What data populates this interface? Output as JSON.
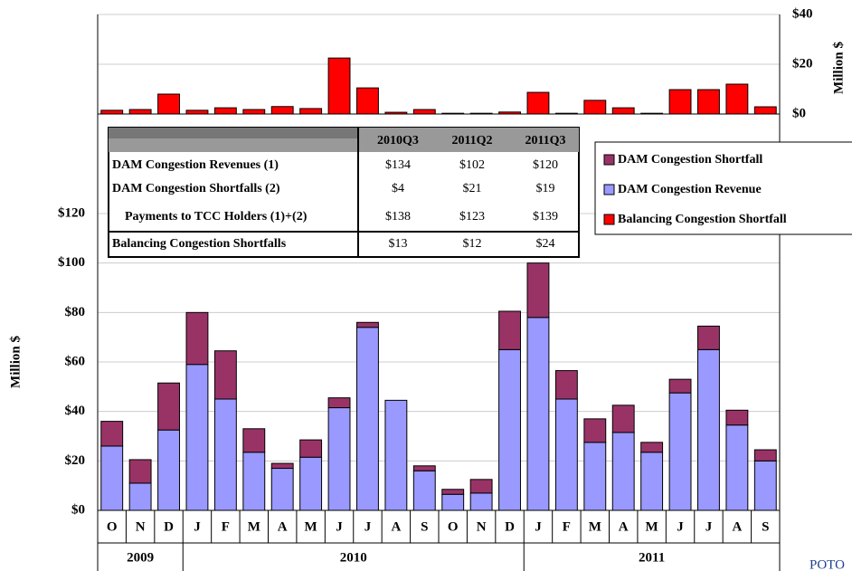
{
  "chart_data": [
    {
      "type": "bar",
      "stacked": true,
      "ylabel": "Million $",
      "categories": [
        "O",
        "N",
        "D",
        "J",
        "F",
        "M",
        "A",
        "M",
        "J",
        "J",
        "A",
        "S",
        "O",
        "N",
        "D",
        "J",
        "F",
        "M",
        "A",
        "M",
        "J",
        "J",
        "A",
        "S"
      ],
      "groups": [
        "2009",
        "2010",
        "2011"
      ],
      "series": [
        {
          "name": "DAM Congestion Revenue",
          "color": "#9999ff",
          "values": [
            26,
            11,
            32.5,
            59,
            45,
            23.5,
            17,
            21.5,
            41.5,
            74,
            44.5,
            16,
            6.5,
            7,
            65,
            78,
            45,
            27.5,
            31.5,
            23.5,
            47.5,
            65,
            34.5,
            20
          ]
        },
        {
          "name": "DAM Congestion Shortfall",
          "color": "#993366",
          "values": [
            10,
            9.5,
            19,
            21,
            19.5,
            9.5,
            2,
            7,
            4,
            2,
            0,
            2,
            2,
            5.5,
            15.5,
            22,
            11.5,
            9.5,
            11,
            4,
            5.5,
            9.5,
            6,
            4.5
          ]
        }
      ],
      "ylim": [
        0,
        120
      ],
      "yticks": [
        {
          "value": 0,
          "label": "$0"
        },
        {
          "value": 20,
          "label": "$20"
        },
        {
          "value": 40,
          "label": "$40"
        },
        {
          "value": 60,
          "label": "$60"
        },
        {
          "value": 80,
          "label": "$80"
        },
        {
          "value": 100,
          "label": "$100"
        },
        {
          "value": 120,
          "label": "$120"
        }
      ],
      "grid": true
    },
    {
      "type": "bar",
      "ylabel": "Million $",
      "series": [
        {
          "name": "Balancing Congestion Shortfall",
          "color": "#ff0000",
          "values": [
            1.5,
            1.8,
            8,
            1.5,
            2.5,
            1.8,
            3,
            2.2,
            22.5,
            10.5,
            0.7,
            1.8,
            0.3,
            0.3,
            0.8,
            8.7,
            0.3,
            5.5,
            2.5,
            0.3,
            9.8,
            9.8,
            12,
            2.9
          ]
        }
      ],
      "ylim": [
        0,
        40
      ],
      "yticks": [
        {
          "value": 0,
          "label": "$0"
        },
        {
          "value": 20,
          "label": "$20"
        },
        {
          "value": 40,
          "label": "$40"
        }
      ],
      "grid": true
    }
  ],
  "table": {
    "columns": [
      "2010Q3",
      "2011Q2",
      "2011Q3"
    ],
    "rows": [
      [
        "DAM Congestion Revenues (1)",
        "$134",
        "$102",
        "$120"
      ],
      [
        "DAM Congestion Shortfalls (2)",
        "$4",
        "$21",
        "$19"
      ],
      [
        "Payments to TCC Holders (1)+(2)",
        "$138",
        "$123",
        "$139"
      ],
      [
        "Balancing Congestion Shortfalls",
        "$13",
        "$12",
        "$24"
      ]
    ]
  },
  "logo": "POTO"
}
